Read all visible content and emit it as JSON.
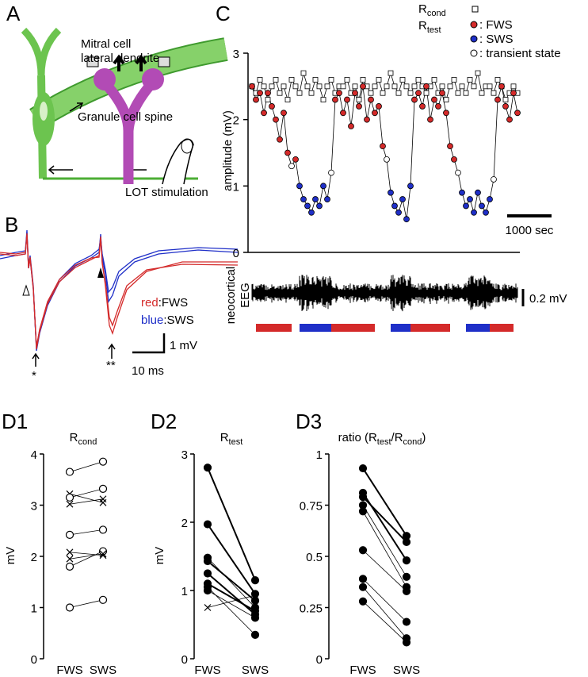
{
  "panel_labels": [
    "A",
    "B",
    "C",
    "D1",
    "D2",
    "D3"
  ],
  "diagram": {
    "mitral_cell": "Mitral cell",
    "lateral_dendrite": "lateral dendrite",
    "granule_spine": "Granule cell spine",
    "stimulation": "LOT stimulation"
  },
  "traces": {
    "legend": [
      {
        "color_word": "red",
        "label": ":FWS"
      },
      {
        "color_word": "blue",
        "label": ":SWS"
      }
    ],
    "markers": [
      "*",
      "**"
    ],
    "scale_y": "1 mV",
    "scale_x": "10 ms"
  },
  "chart_data": [
    {
      "type": "timeseries",
      "ylabel": "amplitude (mV)",
      "ylim": [
        0,
        3
      ],
      "yticks": [
        0,
        1,
        2,
        3
      ],
      "series": [
        {
          "name": "R",
          "subscript": "cond",
          "marker": "square",
          "color": "#ffffff",
          "values": [
            2.5,
            2.4,
            2.6,
            2.5,
            2.3,
            2.5,
            2.6,
            2.4,
            2.5,
            2.3,
            2.6,
            2.5,
            2.4,
            2.7,
            2.5,
            2.4,
            2.6,
            2.5,
            2.3,
            2.5,
            2.6,
            2.4,
            2.5,
            2.5,
            2.6,
            2.4,
            2.5,
            2.3,
            2.6,
            2.5,
            2.4,
            2.5,
            2.6,
            2.4,
            2.5,
            2.7,
            2.5,
            2.4,
            2.6,
            2.5,
            2.4,
            2.5,
            2.6,
            2.5,
            2.4,
            2.5,
            2.6,
            2.4,
            2.5,
            2.3,
            2.5,
            2.6,
            2.4,
            2.5,
            2.4,
            2.6,
            2.5,
            2.7,
            2.4,
            2.5,
            2.5,
            2.4,
            2.6,
            2.5,
            2.3,
            2.4,
            2.5,
            2.4
          ]
        },
        {
          "name": "R",
          "subscript": "test",
          "marker": "circle",
          "values": [
            2.5,
            2.3,
            2.4,
            2.1,
            2.4,
            2.2,
            2.0,
            1.7,
            2.1,
            1.5,
            1.3,
            1.4,
            1.0,
            0.8,
            0.7,
            0.6,
            0.8,
            0.7,
            1.0,
            0.8,
            1.2,
            2.3,
            2.4,
            2.1,
            2.3,
            1.9,
            2.4,
            2.2,
            2.5,
            2.0,
            2.3,
            2.1,
            2.2,
            1.6,
            1.4,
            0.9,
            0.7,
            0.6,
            0.8,
            0.5,
            1.0,
            2.3,
            2.4,
            2.2,
            2.5,
            2.0,
            2.3,
            2.2,
            2.4,
            2.1,
            1.6,
            1.4,
            1.2,
            0.9,
            0.7,
            0.8,
            0.6,
            0.9,
            0.7,
            0.6,
            0.8,
            1.1,
            2.3,
            2.5,
            2.2,
            2.0,
            2.4,
            2.1
          ],
          "states": [
            "FWS",
            "FWS",
            "FWS",
            "FWS",
            "FWS",
            "FWS",
            "FWS",
            "FWS",
            "FWS",
            "FWS",
            "transient",
            "FWS",
            "SWS",
            "SWS",
            "SWS",
            "SWS",
            "SWS",
            "SWS",
            "SWS",
            "SWS",
            "transient",
            "FWS",
            "FWS",
            "FWS",
            "FWS",
            "FWS",
            "FWS",
            "FWS",
            "FWS",
            "FWS",
            "FWS",
            "FWS",
            "FWS",
            "FWS",
            "transient",
            "SWS",
            "SWS",
            "SWS",
            "SWS",
            "SWS",
            "SWS",
            "FWS",
            "FWS",
            "FWS",
            "FWS",
            "FWS",
            "FWS",
            "FWS",
            "FWS",
            "FWS",
            "FWS",
            "FWS",
            "transient",
            "SWS",
            "SWS",
            "SWS",
            "SWS",
            "SWS",
            "SWS",
            "SWS",
            "SWS",
            "transient",
            "FWS",
            "FWS",
            "FWS",
            "FWS",
            "FWS",
            "FWS"
          ]
        }
      ],
      "state_styles": {
        "FWS": {
          "label": ": FWS",
          "color": "#d42a2a"
        },
        "SWS": {
          "label": ": SWS",
          "color": "#1f2fc8"
        },
        "transient": {
          "label": ": transient state",
          "color": "#ffffff"
        }
      },
      "scalebar": "1000 sec",
      "eeg": {
        "label_lines": [
          "neocortical",
          "EEG"
        ],
        "scalebar": "0.2 mV",
        "state_bar": [
          {
            "state": "FWS",
            "from": 1,
            "to": 10
          },
          {
            "state": "SWS",
            "from": 12,
            "to": 20
          },
          {
            "state": "FWS",
            "from": 20,
            "to": 31
          },
          {
            "state": "SWS",
            "from": 35,
            "to": 40
          },
          {
            "state": "FWS",
            "from": 40,
            "to": 50
          },
          {
            "state": "SWS",
            "from": 54,
            "to": 60
          },
          {
            "state": "FWS",
            "from": 60,
            "to": 66
          }
        ]
      }
    },
    {
      "type": "paired",
      "title_parts": [
        {
          "text": "R"
        },
        {
          "sub": "cond"
        }
      ],
      "ylabel": "mV",
      "categories": [
        "FWS",
        "SWS"
      ],
      "ylim": [
        0,
        4
      ],
      "yticks": [
        0,
        1,
        2,
        3,
        4
      ],
      "series": [
        {
          "marker": "circle",
          "weight": "thin",
          "values": [
            3.65,
            3.85
          ]
        },
        {
          "marker": "cross",
          "weight": "thin",
          "values": [
            3.22,
            3.05
          ]
        },
        {
          "marker": "circle",
          "weight": "thin",
          "values": [
            3.15,
            3.32
          ]
        },
        {
          "marker": "cross",
          "weight": "thin",
          "values": [
            3.02,
            3.12
          ]
        },
        {
          "marker": "circle",
          "weight": "thin",
          "values": [
            2.42,
            2.52
          ]
        },
        {
          "marker": "cross",
          "weight": "thin",
          "values": [
            2.08,
            2.02
          ]
        },
        {
          "marker": "circle",
          "weight": "thin",
          "values": [
            1.8,
            2.1
          ]
        },
        {
          "marker": "cross",
          "weight": "thin",
          "values": [
            1.95,
            2.05
          ]
        },
        {
          "marker": "circle",
          "weight": "thin",
          "values": [
            1.0,
            1.15
          ]
        }
      ]
    },
    {
      "type": "paired",
      "title_parts": [
        {
          "text": "R"
        },
        {
          "sub": "test"
        }
      ],
      "ylabel": "mV",
      "categories": [
        "FWS",
        "SWS"
      ],
      "ylim": [
        0,
        3
      ],
      "yticks": [
        0,
        1,
        2,
        3
      ],
      "series": [
        {
          "marker": "dot",
          "weight": "thick",
          "values": [
            2.8,
            1.15
          ]
        },
        {
          "marker": "dot",
          "weight": "thick",
          "values": [
            1.97,
            0.95
          ]
        },
        {
          "marker": "dot",
          "weight": "thin",
          "values": [
            1.48,
            0.75
          ]
        },
        {
          "marker": "dot",
          "weight": "thick",
          "values": [
            1.43,
            0.85
          ]
        },
        {
          "marker": "dot",
          "weight": "thick",
          "values": [
            1.25,
            0.65
          ]
        },
        {
          "marker": "dot",
          "weight": "thick",
          "values": [
            1.1,
            0.7
          ]
        },
        {
          "marker": "dot",
          "weight": "thin",
          "values": [
            1.05,
            0.35
          ]
        },
        {
          "marker": "dot",
          "weight": "thin",
          "values": [
            1.0,
            0.6
          ]
        },
        {
          "marker": "cross",
          "weight": "thin",
          "values": [
            0.75,
            0.93
          ]
        }
      ]
    },
    {
      "type": "paired",
      "title_parts": [
        {
          "text": "ratio (R"
        },
        {
          "sub": "test"
        },
        {
          "text": "/R"
        },
        {
          "sub": "cond"
        },
        {
          "text": ")"
        }
      ],
      "categories": [
        "FWS",
        "SWS"
      ],
      "ylim": [
        0,
        1
      ],
      "yticks": [
        0,
        0.25,
        0.5,
        0.75,
        1
      ],
      "series": [
        {
          "marker": "dot",
          "weight": "thick",
          "values": [
            0.93,
            0.6
          ]
        },
        {
          "marker": "dot",
          "weight": "thick",
          "values": [
            0.81,
            0.48
          ]
        },
        {
          "marker": "dot",
          "weight": "thick",
          "values": [
            0.79,
            0.57
          ]
        },
        {
          "marker": "dot",
          "weight": "thin",
          "values": [
            0.75,
            0.4
          ]
        },
        {
          "marker": "dot",
          "weight": "thin",
          "values": [
            0.72,
            0.35
          ]
        },
        {
          "marker": "dot",
          "weight": "thin",
          "values": [
            0.53,
            0.33
          ]
        },
        {
          "marker": "dot",
          "weight": "thin",
          "values": [
            0.39,
            0.18
          ]
        },
        {
          "marker": "dot",
          "weight": "thin",
          "values": [
            0.35,
            0.1
          ]
        },
        {
          "marker": "dot",
          "weight": "thin",
          "values": [
            0.28,
            0.08
          ]
        }
      ]
    }
  ]
}
